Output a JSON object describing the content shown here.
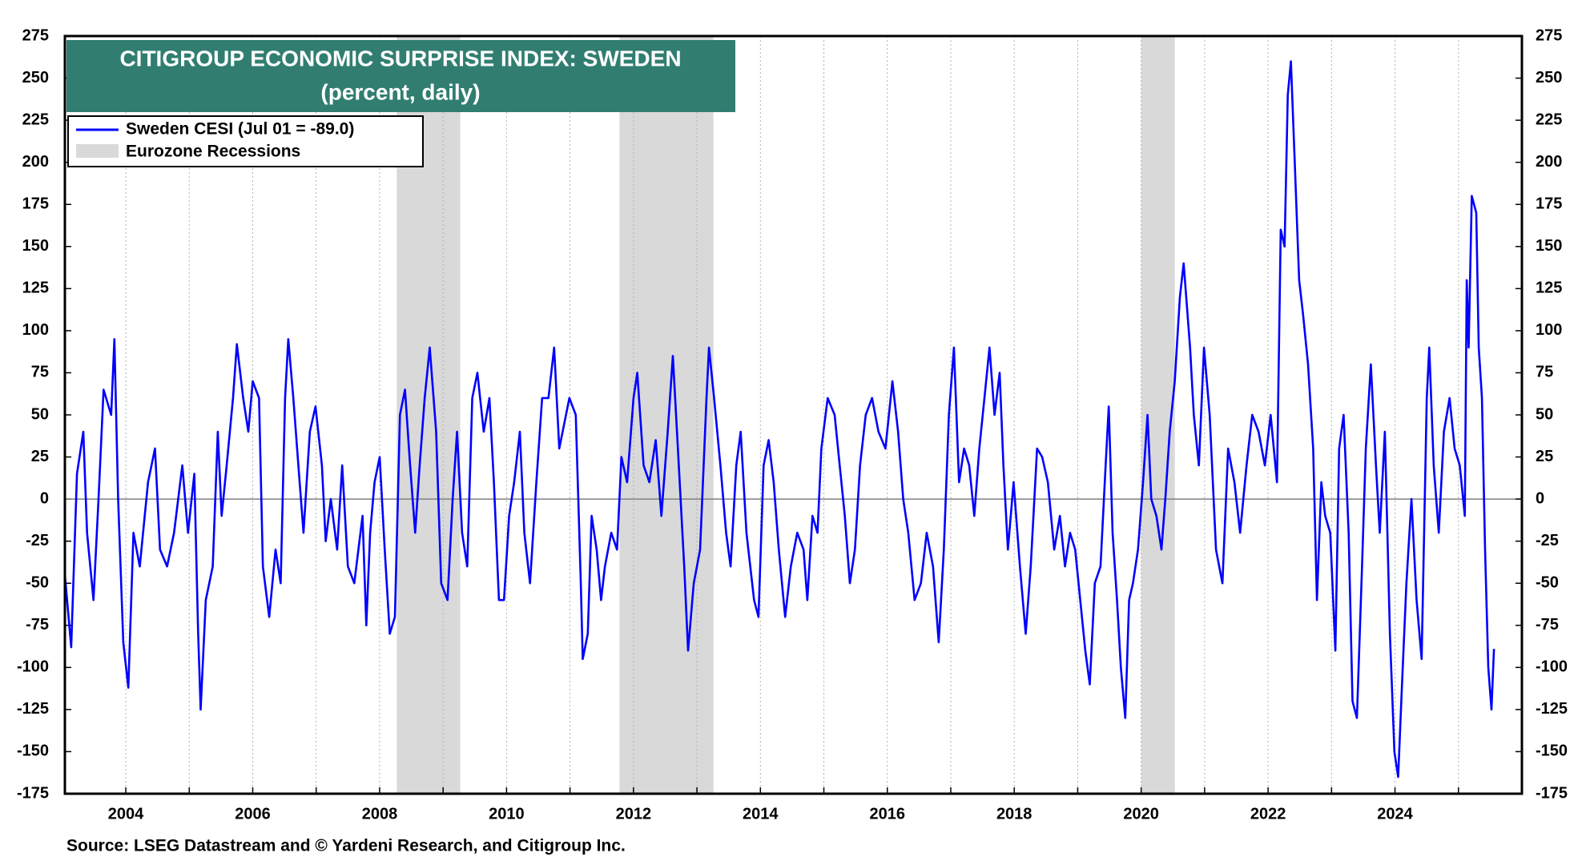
{
  "chart_data": {
    "type": "line",
    "title": "CITIGROUP ECONOMIC SURPRISE INDEX: SWEDEN",
    "subtitle": "(percent, daily)",
    "source": "Source: LSEG Datastream and © Yardeni Research, and Citigroup Inc.",
    "title_color": "#317e71",
    "x": [
      2003.04,
      2003.14,
      2003.23,
      2003.33,
      2003.39,
      2003.49,
      2003.57,
      2003.65,
      2003.77,
      2003.82,
      2003.88,
      2003.96,
      2004.04,
      2004.12,
      2004.22,
      2004.35,
      2004.46,
      2004.54,
      2004.65,
      2004.76,
      2004.89,
      2004.98,
      2005.08,
      2005.14,
      2005.18,
      2005.26,
      2005.37,
      2005.45,
      2005.51,
      2005.59,
      2005.69,
      2005.75,
      2005.85,
      2005.93,
      2006.0,
      2006.1,
      2006.16,
      2006.26,
      2006.36,
      2006.44,
      2006.51,
      2006.56,
      2006.64,
      2006.72,
      2006.8,
      2006.9,
      2006.99,
      2007.09,
      2007.15,
      2007.23,
      2007.33,
      2007.41,
      2007.5,
      2007.6,
      2007.73,
      2007.79,
      2007.85,
      2007.92,
      2008.0,
      2008.08,
      2008.16,
      2008.24,
      2008.32,
      2008.4,
      2008.48,
      2008.56,
      2008.63,
      2008.71,
      2008.79,
      2008.89,
      2008.97,
      2009.07,
      2009.15,
      2009.22,
      2009.3,
      2009.38,
      2009.46,
      2009.54,
      2009.64,
      2009.73,
      2009.8,
      2009.88,
      2009.96,
      2010.04,
      2010.12,
      2010.21,
      2010.28,
      2010.37,
      2010.47,
      2010.56,
      2010.66,
      2010.75,
      2010.83,
      2010.91,
      2010.99,
      2011.09,
      2011.17,
      2011.2,
      2011.28,
      2011.34,
      2011.42,
      2011.49,
      2011.55,
      2011.65,
      2011.74,
      2011.81,
      2011.9,
      2012.0,
      2012.06,
      2012.16,
      2012.25,
      2012.35,
      2012.44,
      2012.54,
      2012.62,
      2012.7,
      2012.8,
      2012.86,
      2012.95,
      2013.05,
      2013.15,
      2013.19,
      2013.27,
      2013.37,
      2013.46,
      2013.53,
      2013.62,
      2013.69,
      2013.78,
      2013.9,
      2013.97,
      2014.05,
      2014.13,
      2014.21,
      2014.29,
      2014.39,
      2014.48,
      2014.58,
      2014.68,
      2014.74,
      2014.82,
      2014.9,
      2014.96,
      2015.06,
      2015.17,
      2015.25,
      2015.33,
      2015.41,
      2015.49,
      2015.57,
      2015.66,
      2015.76,
      2015.86,
      2015.97,
      2016.08,
      2016.17,
      2016.25,
      2016.33,
      2016.43,
      2016.53,
      2016.62,
      2016.72,
      2016.81,
      2016.89,
      2016.97,
      2017.05,
      2017.13,
      2017.21,
      2017.29,
      2017.37,
      2017.45,
      2017.53,
      2017.61,
      2017.69,
      2017.77,
      2017.83,
      2017.9,
      2017.99,
      2018.09,
      2018.18,
      2018.26,
      2018.36,
      2018.44,
      2018.53,
      2018.63,
      2018.72,
      2018.8,
      2018.88,
      2018.96,
      2019.04,
      2019.12,
      2019.19,
      2019.27,
      2019.36,
      2019.44,
      2019.49,
      2019.55,
      2019.62,
      2019.68,
      2019.75,
      2019.81,
      2019.87,
      2019.95,
      2020.03,
      2020.1,
      2020.16,
      2020.24,
      2020.32,
      2020.38,
      2020.45,
      2020.53,
      2020.61,
      2020.67,
      2020.77,
      2020.83,
      2020.91,
      2020.99,
      2021.08,
      2021.18,
      2021.28,
      2021.37,
      2021.47,
      2021.56,
      2021.66,
      2021.75,
      2021.85,
      2021.95,
      2022.04,
      2022.14,
      2022.2,
      2022.26,
      2022.31,
      2022.36,
      2022.42,
      2022.49,
      2022.55,
      2022.63,
      2022.71,
      2022.77,
      2022.84,
      2022.9,
      2022.98,
      2023.06,
      2023.12,
      2023.19,
      2023.27,
      2023.33,
      2023.4,
      2023.48,
      2023.54,
      2023.62,
      2023.7,
      2023.76,
      2023.84,
      2023.92,
      2023.99,
      2024.05,
      2024.11,
      2024.18,
      2024.26,
      2024.34,
      2024.42,
      2024.5,
      2024.54,
      2024.61,
      2024.69,
      2024.77,
      2024.86,
      2024.94,
      2025.02,
      2025.1,
      2025.13,
      2025.16,
      2025.21,
      2025.28,
      2025.32,
      2025.37,
      2025.42,
      2025.47,
      2025.52,
      2025.56
    ],
    "series": [
      {
        "name": "Sweden CESI (Jul 01 = -89.0)",
        "color": "#0000ff",
        "values": [
          -45,
          -88,
          15,
          40,
          -20,
          -60,
          0,
          65,
          50,
          95,
          0,
          -85,
          -112,
          -20,
          -40,
          10,
          30,
          -30,
          -40,
          -20,
          20,
          -20,
          15,
          -80,
          -125,
          -60,
          -40,
          40,
          -10,
          20,
          60,
          92,
          60,
          40,
          70,
          60,
          -40,
          -70,
          -30,
          -50,
          60,
          95,
          60,
          20,
          -20,
          40,
          55,
          20,
          -25,
          0,
          -30,
          20,
          -40,
          -50,
          -10,
          -75,
          -20,
          10,
          25,
          -30,
          -80,
          -70,
          50,
          65,
          20,
          -20,
          20,
          60,
          90,
          40,
          -50,
          -60,
          0,
          40,
          -20,
          -40,
          60,
          75,
          40,
          60,
          10,
          -60,
          -60,
          -10,
          10,
          40,
          -20,
          -50,
          10,
          60,
          60,
          90,
          30,
          45,
          60,
          50,
          -50,
          -95,
          -80,
          -10,
          -30,
          -60,
          -40,
          -20,
          -30,
          25,
          10,
          60,
          75,
          20,
          10,
          35,
          -10,
          40,
          85,
          30,
          -40,
          -90,
          -50,
          -30,
          60,
          90,
          60,
          20,
          -20,
          -40,
          20,
          40,
          -20,
          -60,
          -70,
          20,
          35,
          10,
          -30,
          -70,
          -40,
          -20,
          -30,
          -60,
          -10,
          -20,
          30,
          60,
          50,
          20,
          -10,
          -50,
          -30,
          20,
          50,
          60,
          40,
          30,
          70,
          40,
          0,
          -20,
          -60,
          -50,
          -20,
          -40,
          -85,
          -30,
          50,
          90,
          10,
          30,
          20,
          -10,
          30,
          60,
          90,
          50,
          75,
          20,
          -30,
          10,
          -40,
          -80,
          -40,
          30,
          25,
          10,
          -30,
          -10,
          -40,
          -20,
          -30,
          -60,
          -90,
          -110,
          -50,
          -40,
          20,
          55,
          -20,
          -60,
          -100,
          -130,
          -60,
          -50,
          -30,
          10,
          50,
          0,
          -10,
          -30,
          0,
          40,
          70,
          120,
          140,
          90,
          50,
          20,
          90,
          50,
          -30,
          -50,
          30,
          10,
          -20,
          20,
          50,
          40,
          20,
          50,
          10,
          160,
          150,
          240,
          260,
          200,
          130,
          110,
          80,
          30,
          -60,
          10,
          -10,
          -20,
          -90,
          30,
          50,
          -20,
          -120,
          -130,
          -40,
          30,
          80,
          20,
          -20,
          40,
          -80,
          -150,
          -165,
          -110,
          -50,
          0,
          -60,
          -95,
          60,
          90,
          20,
          -20,
          40,
          60,
          30,
          20,
          -10,
          130,
          90,
          180,
          170,
          90,
          60,
          -30,
          -100,
          -125,
          -89
        ]
      }
    ],
    "shading": {
      "name": "Eurozone Recessions",
      "color": "#d9d9d9",
      "periods": [
        [
          2008.27,
          2009.27
        ],
        [
          2011.78,
          2013.26
        ],
        [
          2020.0,
          2020.53
        ]
      ]
    },
    "xlim": [
      2003.04,
      2026.0
    ],
    "xticks": [
      2004,
      2006,
      2008,
      2010,
      2012,
      2014,
      2016,
      2018,
      2020,
      2022,
      2024
    ],
    "xgrid": [
      2004,
      2005,
      2006,
      2007,
      2008,
      2009,
      2010,
      2011,
      2012,
      2013,
      2014,
      2015,
      2016,
      2017,
      2018,
      2019,
      2020,
      2021,
      2022,
      2023,
      2024,
      2025
    ],
    "ylim": [
      -175,
      275
    ],
    "yticks": [
      -175,
      -150,
      -125,
      -100,
      -75,
      -50,
      -25,
      0,
      25,
      50,
      75,
      100,
      125,
      150,
      175,
      200,
      225,
      250,
      275
    ],
    "y2lim": [
      -175,
      275
    ],
    "y2ticks": [
      -175,
      -150,
      -125,
      -100,
      -75,
      -50,
      -25,
      0,
      25,
      50,
      75,
      100,
      125,
      150,
      175,
      200,
      225,
      250,
      275
    ]
  }
}
